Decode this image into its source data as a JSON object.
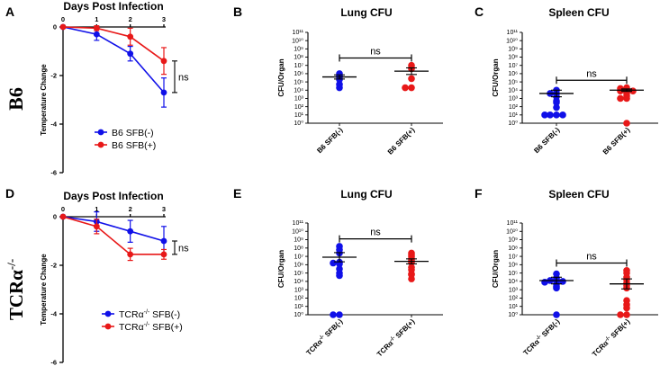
{
  "rows": [
    {
      "letter_temp": "A",
      "letter_lung": "B",
      "letter_spleen": "C",
      "mouse": "B6",
      "mouse_sup": ""
    },
    {
      "letter_temp": "D",
      "letter_lung": "E",
      "letter_spleen": "F",
      "mouse": "TCRα",
      "mouse_sup": "-/-"
    }
  ],
  "colors": {
    "neg": "#1010e8",
    "pos": "#e81818"
  },
  "chart_data": [
    {
      "type": "line",
      "id": "A",
      "title": "Days Post Infection",
      "ylabel": "Temperature Change",
      "x": [
        0,
        1,
        2,
        3
      ],
      "xticks": [
        "0",
        "1",
        "2",
        "3"
      ],
      "yticks": [
        "0",
        "-2",
        "-4",
        "-6"
      ],
      "ylim": [
        -6,
        0
      ],
      "series": [
        {
          "name": "B6 SFB(-)",
          "color": "neg",
          "values": [
            0,
            -0.3,
            -1.1,
            -2.7
          ],
          "err": [
            0,
            0.25,
            0.3,
            0.6
          ]
        },
        {
          "name": "B6 SFB(+)",
          "color": "pos",
          "values": [
            0,
            -0.05,
            -0.4,
            -1.4
          ],
          "err": [
            0,
            0.1,
            0.35,
            0.55
          ]
        }
      ],
      "annotation": "ns"
    },
    {
      "type": "scatter",
      "id": "B",
      "title": "Lung CFU",
      "ylabel": "CFU/Organ",
      "yscale": "log",
      "ylim": [
        0,
        11
      ],
      "yticks": [
        "10⁰",
        "10¹",
        "10²",
        "10³",
        "10⁴",
        "10⁵",
        "10⁶",
        "10⁷",
        "10⁸",
        "10⁹",
        "10¹⁰",
        "10¹¹"
      ],
      "categories": [
        "B6 SFB(-)",
        "B6 SFB(+)"
      ],
      "series": [
        {
          "name": "B6 SFB(-)",
          "color": "neg",
          "values": [
            6.0,
            5.7,
            5.6,
            5.3,
            4.7,
            4.3
          ],
          "mean": 5.6,
          "sem": 0.25
        },
        {
          "name": "B6 SFB(+)",
          "color": "pos",
          "values": [
            7.0,
            6.7,
            6.6,
            5.4,
            4.3,
            4.3
          ],
          "mean": 6.3,
          "sem": 0.4
        }
      ],
      "annotation": "ns"
    },
    {
      "type": "scatter",
      "id": "C",
      "title": "Spleen CFU",
      "ylabel": "CFU/Organ",
      "yscale": "log",
      "ylim": [
        0,
        11
      ],
      "yticks": [
        "10⁰",
        "10¹",
        "10²",
        "10³",
        "10⁴",
        "10⁵",
        "10⁶",
        "10⁷",
        "10⁸",
        "10⁹",
        "10¹⁰",
        "10¹¹"
      ],
      "categories": [
        "B6 SFB(-)",
        "B6 SFB(+)"
      ],
      "series": [
        {
          "name": "B6 SFB(-)",
          "color": "neg",
          "values": [
            4.0,
            3.6,
            3.6,
            3.2,
            2.7,
            2.5,
            1.9,
            1.0,
            1.0,
            1.0,
            1.0
          ],
          "mean": 3.6,
          "sem": 0.4
        },
        {
          "name": "B6 SFB(+)",
          "color": "pos",
          "values": [
            4.3,
            4.2,
            4.0,
            3.9,
            3.9,
            3.8,
            3.6,
            3.3,
            3.0,
            3.0,
            0.0
          ],
          "mean": 4.0,
          "sem": 0.15
        }
      ],
      "annotation": "ns"
    },
    {
      "type": "line",
      "id": "D",
      "title": "Days Post Infection",
      "ylabel": "Temperature Change",
      "x": [
        0,
        1,
        2,
        3
      ],
      "xticks": [
        "0",
        "1",
        "2",
        "3"
      ],
      "yticks": [
        "0",
        "-2",
        "-4",
        "-6"
      ],
      "ylim": [
        -6,
        0
      ],
      "series": [
        {
          "name": "TCRα-/- SFB(-)",
          "color": "neg",
          "values": [
            0,
            -0.2,
            -0.6,
            -1.0
          ],
          "err": [
            0,
            0.4,
            0.45,
            0.6
          ]
        },
        {
          "name": "TCRα-/- SFB(+)",
          "color": "pos",
          "values": [
            0,
            -0.4,
            -1.55,
            -1.55
          ],
          "err": [
            0,
            0.3,
            0.25,
            0.2
          ]
        }
      ],
      "annotation": "ns"
    },
    {
      "type": "scatter",
      "id": "E",
      "title": "Lung CFU",
      "ylabel": "CFU/Organ",
      "yscale": "log",
      "ylim": [
        0,
        11
      ],
      "yticks": [
        "10⁰",
        "10¹",
        "10²",
        "10³",
        "10⁴",
        "10⁵",
        "10⁶",
        "10⁷",
        "10⁸",
        "10⁹",
        "10¹⁰",
        "10¹¹"
      ],
      "categories": [
        "TCRα-/- SFB(-)",
        "TCRα-/- SFB(+)"
      ],
      "series": [
        {
          "name": "TCRα-/- SFB(-)",
          "color": "neg",
          "values": [
            8.2,
            7.8,
            7.4,
            6.3,
            6.2,
            6.1,
            5.5,
            5.0,
            4.7,
            0.0,
            0.0
          ],
          "mean": 6.9,
          "sem": 0.55
        },
        {
          "name": "TCRα-/- SFB(+)",
          "color": "pos",
          "values": [
            7.4,
            7.2,
            7.0,
            6.7,
            6.5,
            6.3,
            5.7,
            5.4,
            4.9,
            4.8,
            4.3
          ],
          "mean": 6.4,
          "sem": 0.3
        }
      ],
      "annotation": "ns"
    },
    {
      "type": "scatter",
      "id": "F",
      "title": "Spleen CFU",
      "ylabel": "CFU/Organ",
      "yscale": "log",
      "ylim": [
        0,
        11
      ],
      "yticks": [
        "10⁰",
        "10¹",
        "10²",
        "10³",
        "10⁴",
        "10⁵",
        "10⁶",
        "10⁷",
        "10⁸",
        "10⁹",
        "10¹⁰",
        "10¹¹"
      ],
      "categories": [
        "TCRα-/- SFB(-)",
        "TCRα-/- SFB(+)"
      ],
      "series": [
        {
          "name": "TCRα-/- SFB(-)",
          "color": "neg",
          "values": [
            4.9,
            4.4,
            4.3,
            4.1,
            4.1,
            4.0,
            3.9,
            3.7,
            3.4,
            3.2,
            0.0
          ],
          "mean": 4.1,
          "sem": 0.4
        },
        {
          "name": "TCRα-/- SFB(+)",
          "color": "pos",
          "values": [
            5.3,
            5.0,
            4.5,
            4.2,
            3.8,
            3.5,
            3.2,
            1.7,
            1.2,
            0.8,
            0.0,
            0.0
          ],
          "mean": 3.7,
          "sem": 0.6
        }
      ],
      "annotation": "ns"
    }
  ]
}
